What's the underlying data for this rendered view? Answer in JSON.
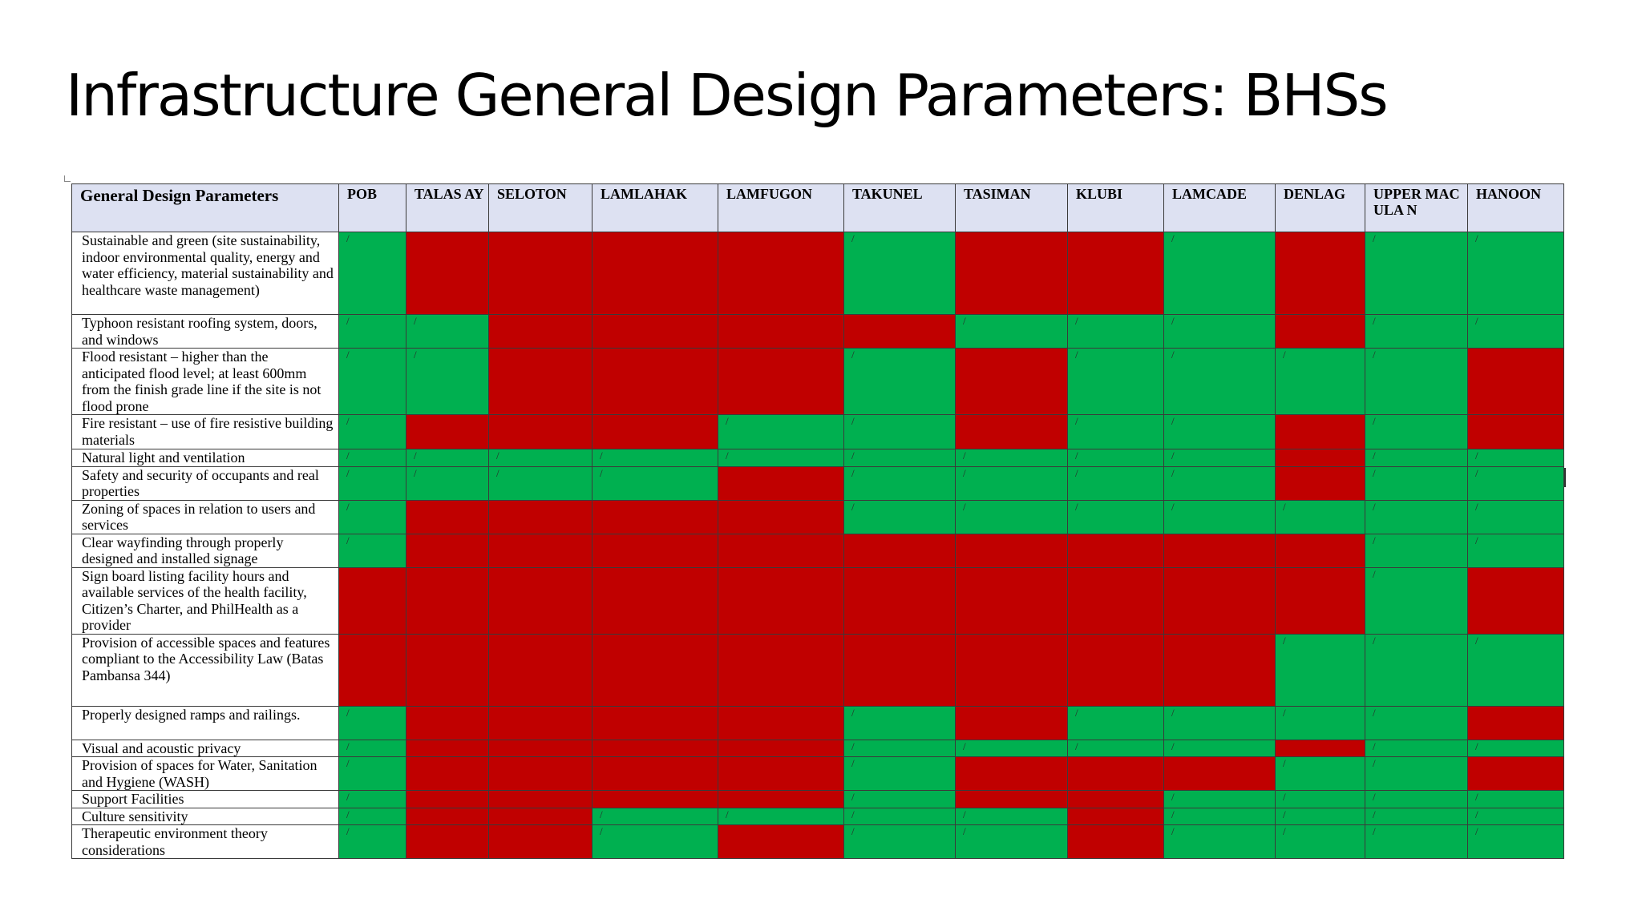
{
  "title": "Infrastructure General Design Parameters: BHSs",
  "colors": {
    "green": "#00b050",
    "red": "#c00000",
    "header_bg": "#dde1f2"
  },
  "table": {
    "param_header": "General Design Parameters",
    "mark_symbol": "/",
    "columns": [
      "POB",
      "TALAS AY",
      "SELOTON",
      "LAMLAHAK",
      "LAMFUGON",
      "TAKUNEL",
      "TASIMAN",
      "KLUBI",
      "LAMCADE",
      "DENLAG",
      "UPPER MACULA N",
      "HANOON"
    ],
    "rows": [
      {
        "param": "Sustainable and green (site sustainability, indoor environmental quality, energy and water efficiency, material sustainability and healthcare waste management)",
        "status": [
          "G",
          "R",
          "R",
          "R",
          "R",
          "G",
          "R",
          "R",
          "G",
          "R",
          "G",
          "G"
        ]
      },
      {
        "param": "Typhoon resistant roofing system, doors, and windows",
        "status": [
          "G",
          "G",
          "R",
          "R",
          "R",
          "R",
          "G",
          "G",
          "G",
          "R",
          "G",
          "G"
        ]
      },
      {
        "param": "Flood resistant – higher than the anticipated flood level; at least 600mm from the finish grade line if the site is not flood prone",
        "status": [
          "G",
          "G",
          "R",
          "R",
          "R",
          "G",
          "R",
          "G",
          "G",
          "G",
          "G",
          "R"
        ]
      },
      {
        "param": "Fire resistant – use of fire resistive building materials",
        "status": [
          "G",
          "R",
          "R",
          "R",
          "G",
          "G",
          "R",
          "G",
          "G",
          "R",
          "G",
          "R"
        ]
      },
      {
        "param": "Natural light and ventilation",
        "status": [
          "G",
          "G",
          "G",
          "G",
          "G",
          "G",
          "G",
          "G",
          "G",
          "R",
          "G",
          "G"
        ]
      },
      {
        "param": "Safety and security of occupants and real properties",
        "status": [
          "G",
          "G",
          "G",
          "G",
          "R",
          "G",
          "G",
          "G",
          "G",
          "R",
          "G",
          "G"
        ]
      },
      {
        "param": "Zoning of spaces in relation to users and services",
        "status": [
          "G",
          "R",
          "R",
          "R",
          "R",
          "G",
          "G",
          "G",
          "G",
          "G",
          "G",
          "G"
        ]
      },
      {
        "param": "Clear wayfinding through properly designed and installed signage",
        "status": [
          "G",
          "R",
          "R",
          "R",
          "R",
          "R",
          "R",
          "R",
          "R",
          "R",
          "G",
          "G"
        ]
      },
      {
        "param": "Sign board listing facility hours and available services of the health facility, Citizen’s Charter, and PhilHealth as a provider",
        "status": [
          "R",
          "R",
          "R",
          "R",
          "R",
          "R",
          "R",
          "R",
          "R",
          "R",
          "G",
          "R"
        ]
      },
      {
        "param": "Provision of accessible spaces and features compliant to the Accessibility Law (Batas Pambansa 344)",
        "status": [
          "R",
          "R",
          "R",
          "R",
          "R",
          "R",
          "R",
          "R",
          "R",
          "G",
          "G",
          "G"
        ]
      },
      {
        "param": "Properly designed ramps and railings.",
        "status": [
          "G",
          "R",
          "R",
          "R",
          "R",
          "G",
          "R",
          "G",
          "G",
          "G",
          "G",
          "R"
        ]
      },
      {
        "param": "Visual and acoustic privacy",
        "status": [
          "G",
          "R",
          "R",
          "R",
          "R",
          "G",
          "G",
          "G",
          "G",
          "R",
          "G",
          "G"
        ]
      },
      {
        "param": "Provision of spaces for Water, Sanitation and Hygiene (WASH)",
        "status": [
          "G",
          "R",
          "R",
          "R",
          "R",
          "G",
          "R",
          "R",
          "R",
          "G",
          "G",
          "R"
        ]
      },
      {
        "param": "Support Facilities",
        "status": [
          "G",
          "R",
          "R",
          "R",
          "R",
          "G",
          "R",
          "R",
          "G",
          "G",
          "G",
          "G"
        ]
      },
      {
        "param": "Culture sensitivity",
        "status": [
          "G",
          "R",
          "R",
          "G",
          "G",
          "G",
          "G",
          "R",
          "G",
          "G",
          "G",
          "G"
        ]
      },
      {
        "param": "Therapeutic environment theory considerations",
        "status": [
          "G",
          "R",
          "R",
          "G",
          "R",
          "G",
          "G",
          "R",
          "G",
          "G",
          "G",
          "G"
        ]
      }
    ]
  }
}
